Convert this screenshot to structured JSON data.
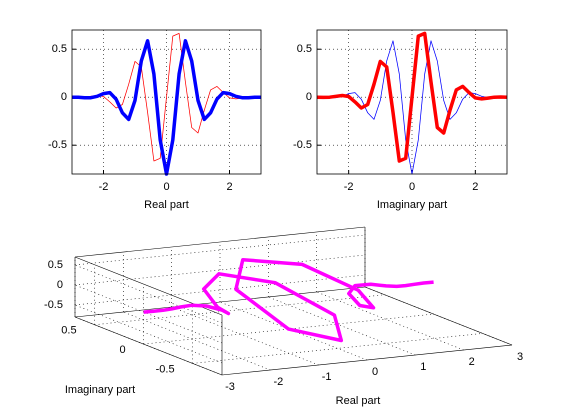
{
  "chart_data": [
    {
      "type": "line",
      "xlabel": "Real part",
      "xlim": [
        -3,
        3
      ],
      "ylim": [
        -0.8,
        0.7
      ],
      "xticks": [
        -2,
        0,
        2
      ],
      "yticks": [
        -0.5,
        0,
        0.5
      ],
      "grid": true,
      "x": [
        -3,
        -2.8,
        -2.6,
        -2.4,
        -2.2,
        -2,
        -1.8,
        -1.6,
        -1.4,
        -1.2,
        -1,
        -0.8,
        -0.6,
        -0.4,
        -0.2,
        0,
        0.2,
        0.4,
        0.6,
        0.8,
        1,
        1.2,
        1.4,
        1.6,
        1.8,
        2,
        2.2,
        2.4,
        2.6,
        2.8,
        3
      ],
      "series": [
        {
          "color": "#ff0000",
          "width": 0.75,
          "values": [
            0,
            -0.002,
            0,
            0.009,
            0.018,
            0.007,
            -0.049,
            -0.112,
            -0.076,
            0.135,
            0.373,
            0.316,
            -0.158,
            -0.665,
            -0.636,
            0,
            0.636,
            0.665,
            0.158,
            -0.316,
            -0.373,
            -0.135,
            0.076,
            0.112,
            0.049,
            -0.007,
            -0.018,
            -0.009,
            0,
            0.002,
            0
          ]
        },
        {
          "color": "#0000ff",
          "width": 3.5,
          "values": [
            0,
            -0.001,
            -0.005,
            -0.005,
            0.009,
            0.037,
            0.048,
            -0.021,
            -0.163,
            -0.231,
            -0.033,
            0.377,
            0.588,
            0.242,
            -0.445,
            -0.8,
            -0.445,
            0.242,
            0.588,
            0.377,
            -0.033,
            -0.231,
            -0.163,
            -0.021,
            0.048,
            0.037,
            0.009,
            -0.005,
            -0.005,
            -0.001,
            0
          ]
        }
      ]
    },
    {
      "type": "line",
      "xlabel": "Imaginary part",
      "xlim": [
        -3,
        3
      ],
      "ylim": [
        -0.8,
        0.7
      ],
      "xticks": [
        -2,
        0,
        2
      ],
      "yticks": [
        -0.5,
        0,
        0.5
      ],
      "grid": true,
      "x": [
        -3,
        -2.8,
        -2.6,
        -2.4,
        -2.2,
        -2,
        -1.8,
        -1.6,
        -1.4,
        -1.2,
        -1,
        -0.8,
        -0.6,
        -0.4,
        -0.2,
        0,
        0.2,
        0.4,
        0.6,
        0.8,
        1,
        1.2,
        1.4,
        1.6,
        1.8,
        2,
        2.2,
        2.4,
        2.6,
        2.8,
        3
      ],
      "series": [
        {
          "color": "#0000ff",
          "width": 0.75,
          "values": [
            0,
            -0.001,
            -0.005,
            -0.005,
            0.009,
            0.037,
            0.048,
            -0.021,
            -0.163,
            -0.231,
            -0.033,
            0.377,
            0.588,
            0.242,
            -0.445,
            -0.8,
            -0.445,
            0.242,
            0.588,
            0.377,
            -0.033,
            -0.231,
            -0.163,
            -0.021,
            0.048,
            0.037,
            0.009,
            -0.005,
            -0.005,
            -0.001,
            0
          ]
        },
        {
          "color": "#ff0000",
          "width": 3.5,
          "values": [
            0,
            -0.002,
            0,
            0.009,
            0.018,
            0.007,
            -0.049,
            -0.112,
            -0.076,
            0.135,
            0.373,
            0.316,
            -0.158,
            -0.665,
            -0.636,
            0,
            0.636,
            0.665,
            0.158,
            -0.316,
            -0.373,
            -0.135,
            0.076,
            0.112,
            0.049,
            -0.007,
            -0.018,
            -0.009,
            0,
            0.002,
            0
          ]
        }
      ]
    },
    {
      "type": "line3d",
      "xlabel": "Real part",
      "ylabel": "Imaginary part",
      "xlim": [
        -3,
        3
      ],
      "ylim": [
        -0.8,
        0.7
      ],
      "zlim": [
        -0.8,
        0.7
      ],
      "xticks": [
        -3,
        -2,
        -1,
        0,
        1,
        2,
        3
      ],
      "yticks": [
        -0.5,
        0,
        0.5
      ],
      "zticks": [
        -0.5,
        0,
        0.5
      ],
      "grid": true,
      "series": [
        {
          "color": "#ff00ff",
          "width": 3.5,
          "x": [
            -3,
            -2.8,
            -2.6,
            -2.4,
            -2.2,
            -2,
            -1.8,
            -1.6,
            -1.4,
            -1.2,
            -1,
            -0.8,
            -0.6,
            -0.4,
            -0.2,
            0,
            0.2,
            0.4,
            0.6,
            0.8,
            1,
            1.2,
            1.4,
            1.6,
            1.8,
            2,
            2.2,
            2.4,
            2.6,
            2.8,
            3
          ],
          "y": [
            0,
            -0.002,
            0,
            0.009,
            0.018,
            0.007,
            -0.049,
            -0.112,
            -0.076,
            0.135,
            0.373,
            0.316,
            -0.158,
            -0.665,
            -0.636,
            0,
            0.636,
            0.665,
            0.158,
            -0.316,
            -0.373,
            -0.135,
            0.076,
            0.112,
            0.049,
            -0.007,
            -0.018,
            -0.009,
            0,
            0.002,
            0
          ],
          "z": [
            0,
            -0.001,
            -0.005,
            -0.005,
            0.009,
            0.037,
            0.048,
            -0.021,
            -0.163,
            -0.231,
            -0.033,
            0.377,
            0.588,
            0.242,
            -0.445,
            -0.8,
            -0.445,
            0.242,
            0.588,
            0.377,
            -0.033,
            -0.231,
            -0.163,
            -0.021,
            0.048,
            0.037,
            0.009,
            -0.005,
            -0.005,
            -0.001,
            0
          ]
        }
      ]
    }
  ]
}
